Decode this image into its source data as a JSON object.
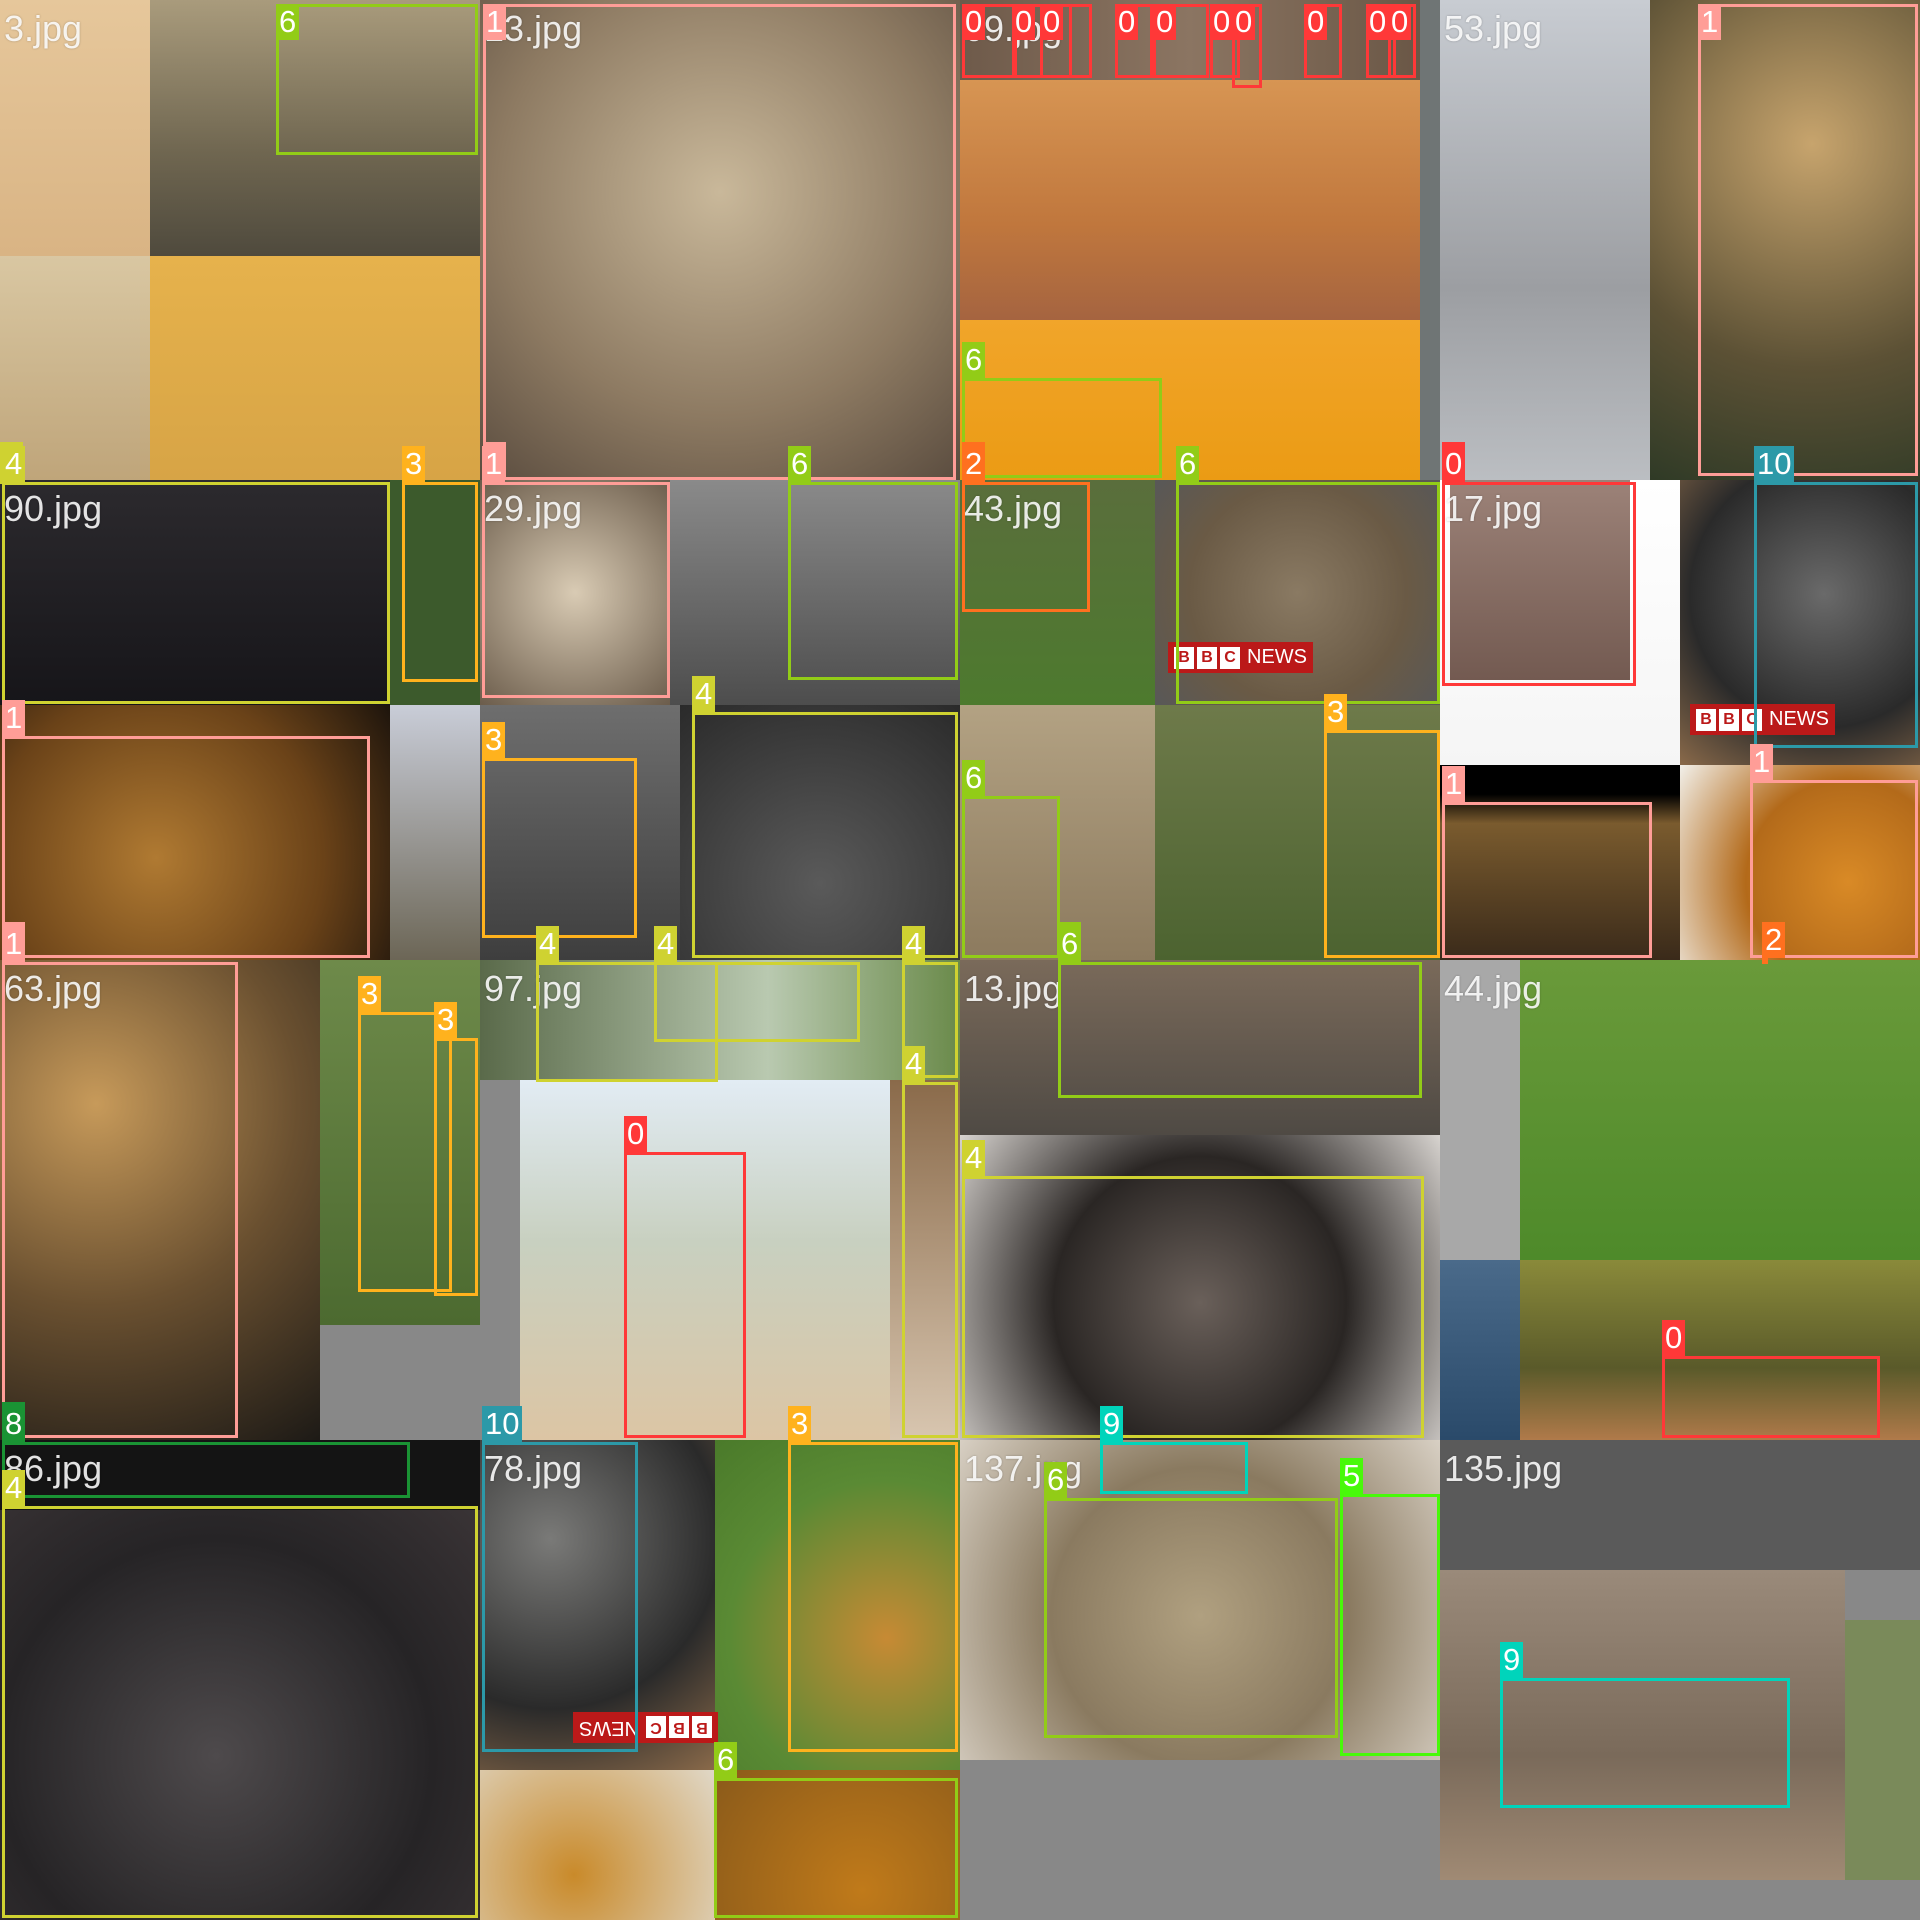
{
  "class_colors": {
    "0": "#ff3838",
    "1": "#ff9d97",
    "2": "#ff701f",
    "3": "#ffb21d",
    "4": "#cfd231",
    "5": "#48f90a",
    "6": "#92cc17",
    "8": "#1a9334",
    "9": "#00d4bb",
    "10": "#2c99a8"
  },
  "tiles": [
    {
      "filename": "3.jpg"
    },
    {
      "filename": "13.jpg"
    },
    {
      "filename": "09.jpg"
    },
    {
      "filename": "53.jpg"
    },
    {
      "filename": "90.jpg"
    },
    {
      "filename": "29.jpg"
    },
    {
      "filename": "43.jpg"
    },
    {
      "filename": "17.jpg"
    },
    {
      "filename": "63.jpg"
    },
    {
      "filename": "97.jpg"
    },
    {
      "filename": "13.jpg"
    },
    {
      "filename": "44.jpg"
    },
    {
      "filename": "86.jpg"
    },
    {
      "filename": "78.jpg"
    },
    {
      "filename": "137.jpg"
    },
    {
      "filename": "135.jpg"
    }
  ],
  "logos": [
    {
      "text": "NEWS",
      "letters": [
        "B",
        "B",
        "C"
      ],
      "background": "#bb1919"
    },
    {
      "text": "NEWS",
      "letters": [
        "B",
        "B",
        "C"
      ],
      "background": "#bb1919"
    },
    {
      "text": "NEWS",
      "letters": [
        "B",
        "B",
        "C"
      ],
      "background": "#bb1919"
    }
  ],
  "boxes": [
    {
      "cls": "6"
    },
    {
      "cls": "4"
    },
    {
      "cls": "1"
    },
    {
      "cls": "1"
    },
    {
      "cls": "0"
    },
    {
      "cls": "0"
    },
    {
      "cls": "0"
    },
    {
      "cls": "0"
    },
    {
      "cls": "0"
    },
    {
      "cls": "0"
    },
    {
      "cls": "0"
    },
    {
      "cls": "0"
    },
    {
      "cls": "0"
    },
    {
      "cls": "0"
    },
    {
      "cls": "6"
    },
    {
      "cls": "2"
    },
    {
      "cls": "1"
    },
    {
      "cls": "0"
    },
    {
      "cls": "4"
    },
    {
      "cls": "3"
    },
    {
      "cls": "1"
    },
    {
      "cls": "1"
    },
    {
      "cls": "1"
    },
    {
      "cls": "6"
    },
    {
      "cls": "3"
    },
    {
      "cls": "4"
    },
    {
      "cls": "2"
    },
    {
      "cls": "6"
    },
    {
      "cls": "6"
    },
    {
      "cls": "3"
    },
    {
      "cls": "6"
    },
    {
      "cls": "0"
    },
    {
      "cls": "10"
    },
    {
      "cls": "1"
    },
    {
      "cls": "1"
    },
    {
      "cls": "2"
    },
    {
      "cls": "1"
    },
    {
      "cls": "3"
    },
    {
      "cls": "3"
    },
    {
      "cls": "8"
    },
    {
      "cls": "4"
    },
    {
      "cls": "4"
    },
    {
      "cls": "4"
    },
    {
      "cls": "0"
    },
    {
      "cls": "4"
    },
    {
      "cls": "6"
    },
    {
      "cls": "4"
    },
    {
      "cls": "0"
    },
    {
      "cls": "8"
    },
    {
      "cls": "4"
    },
    {
      "cls": "10"
    },
    {
      "cls": "3"
    },
    {
      "cls": "6"
    },
    {
      "cls": "9"
    },
    {
      "cls": "6"
    },
    {
      "cls": "5"
    },
    {
      "cls": "9"
    }
  ]
}
